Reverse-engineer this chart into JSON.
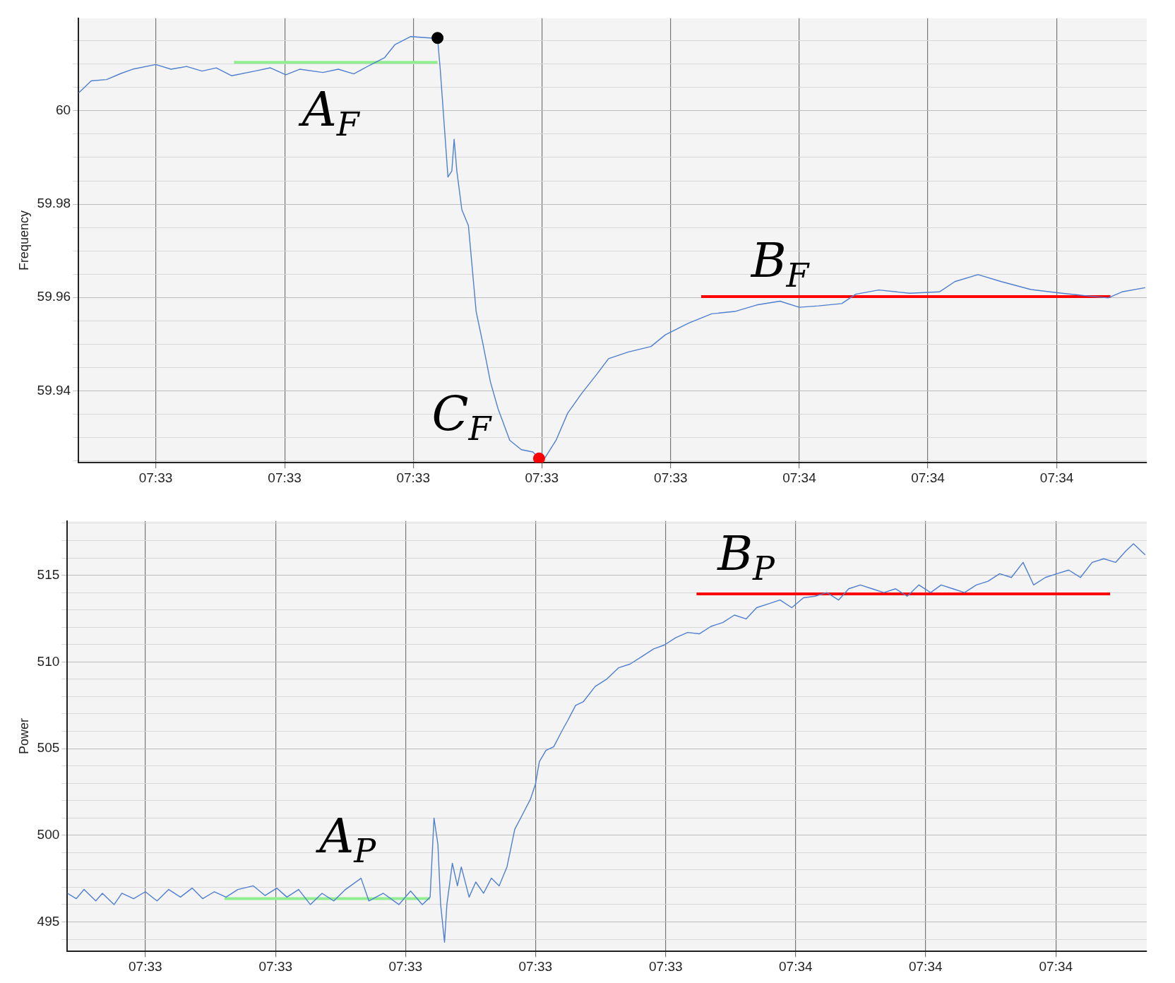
{
  "chart_data": [
    {
      "type": "line",
      "ylabel": "Frequency",
      "xlim": [
        7.54133,
        7.569
      ],
      "ylim": [
        59.9246,
        60.0198
      ],
      "xticks": [
        {
          "value": 7.54333,
          "label": "07:33"
        },
        {
          "value": 7.54667,
          "label": "07:33"
        },
        {
          "value": 7.55,
          "label": "07:33"
        },
        {
          "value": 7.55333,
          "label": "07:33"
        },
        {
          "value": 7.55667,
          "label": "07:33"
        },
        {
          "value": 7.56,
          "label": "07:34"
        },
        {
          "value": 7.56333,
          "label": "07:34"
        },
        {
          "value": 7.56667,
          "label": "07:34"
        }
      ],
      "yticks": [
        {
          "value": 59.925,
          "label": null
        },
        {
          "value": 59.93,
          "label": null
        },
        {
          "value": 59.935,
          "label": null
        },
        59.94,
        {
          "value": 59.945,
          "label": null
        },
        {
          "value": 59.95,
          "label": null
        },
        {
          "value": 59.955,
          "label": null
        },
        59.96,
        {
          "value": 59.965,
          "label": null
        },
        {
          "value": 59.97,
          "label": null
        },
        {
          "value": 59.975,
          "label": null
        },
        59.98,
        {
          "value": 59.985,
          "label": null
        },
        {
          "value": 59.99,
          "label": null
        },
        {
          "value": 59.995,
          "label": null
        },
        60,
        {
          "value": 60.005,
          "label": null
        },
        {
          "value": 60.01,
          "label": null
        },
        {
          "value": 60.015,
          "label": null
        }
      ],
      "grid": true,
      "legend": false,
      "series": [
        {
          "color": "#4f7fd0",
          "marker": "none",
          "x": [
            7.54133,
            7.54166,
            7.54206,
            7.54243,
            7.54273,
            7.54333,
            7.54373,
            7.54413,
            7.54453,
            7.5449,
            7.5453,
            7.5459,
            7.5463,
            7.5467,
            7.54706,
            7.54766,
            7.54806,
            7.54846,
            7.54886,
            7.54926,
            7.54953,
            7.54993,
            7.55043,
            7.55063,
            7.5507,
            7.55083,
            7.5509,
            7.551,
            7.55106,
            7.55113,
            7.55126,
            7.55143,
            7.55163,
            7.5518,
            7.552,
            7.5522,
            7.5525,
            7.5528,
            7.5531,
            7.55326,
            7.5534,
            7.5537,
            7.554,
            7.55436,
            7.55476,
            7.55506,
            7.55556,
            7.55616,
            7.55653,
            7.55713,
            7.55773,
            7.55833,
            7.5589,
            7.5595,
            7.56,
            7.5605,
            7.5611,
            7.56146,
            7.56206,
            7.56286,
            7.56363,
            7.56403,
            7.56463,
            7.56523,
            7.566,
            7.5668,
            7.5674,
            7.568,
            7.56836,
            7.56896
          ],
          "values": [
            60.0038,
            60.0064,
            60.0067,
            60.008,
            60.0089,
            60.0099,
            60.0089,
            60.0095,
            60.0085,
            60.0092,
            60.0075,
            60.0085,
            60.0092,
            60.0077,
            60.0089,
            60.0082,
            60.0089,
            60.0079,
            60.0097,
            60.0114,
            60.0142,
            60.0159,
            60.0156,
            60.0156,
            60.0089,
            59.9939,
            59.9858,
            59.9871,
            59.9939,
            59.9871,
            59.9788,
            59.9754,
            59.957,
            59.9503,
            59.9419,
            59.9361,
            59.9294,
            59.9274,
            59.9269,
            59.9255,
            59.9255,
            59.9294,
            59.9352,
            59.9394,
            59.9436,
            59.9469,
            59.9483,
            59.9495,
            59.952,
            59.9545,
            59.9565,
            59.957,
            59.9584,
            59.9592,
            59.9579,
            59.9582,
            59.9587,
            59.9607,
            59.9616,
            59.9609,
            59.9612,
            59.9634,
            59.9649,
            59.9634,
            59.9617,
            59.9609,
            59.9604,
            59.9599,
            59.9612,
            59.9621
          ]
        },
        {
          "color": "#90ee90",
          "marker": "none",
          "x": [
            7.54536,
            7.55063
          ],
          "values": [
            60.0104,
            60.0104
          ]
        },
        {
          "color": "#ff0000",
          "marker": "none",
          "x": [
            7.55746,
            7.56806
          ],
          "values": [
            59.9602,
            59.9602
          ]
        },
        {
          "type": "scatter",
          "color": "#000000",
          "marker": "circle",
          "x": [
            7.55063
          ],
          "values": [
            60.0156
          ]
        },
        {
          "type": "scatter",
          "color": "#ff0000",
          "marker": "circle",
          "x": [
            7.55326
          ],
          "values": [
            59.9255
          ]
        }
      ],
      "annotations": [
        {
          "text": "A$_{F}$",
          "x": 7.54786,
          "y": 60.0104
        },
        {
          "text": "B$_{F}$",
          "x": 7.5595,
          "y": 59.9602
        },
        {
          "text": "C$_{F}$",
          "x": 7.55326,
          "y": 59.9255
        }
      ]
    },
    {
      "type": "line",
      "ylabel": "Power",
      "xlim": [
        7.54133,
        7.569
      ],
      "ylim": [
        493.3,
        518.12
      ],
      "xticks": [
        {
          "value": 7.54333,
          "label": "07:33"
        },
        {
          "value": 7.54667,
          "label": "07:33"
        },
        {
          "value": 7.55,
          "label": "07:33"
        },
        {
          "value": 7.55333,
          "label": "07:33"
        },
        {
          "value": 7.55667,
          "label": "07:33"
        },
        {
          "value": 7.56,
          "label": "07:34"
        },
        {
          "value": 7.56333,
          "label": "07:34"
        },
        {
          "value": 7.56667,
          "label": "07:34"
        }
      ],
      "yticks": [
        {
          "value": 494,
          "label": null
        },
        495,
        {
          "value": 496,
          "label": null
        },
        {
          "value": 497,
          "label": null
        },
        {
          "value": 498,
          "label": null
        },
        {
          "value": 499,
          "label": null
        },
        500,
        {
          "value": 501,
          "label": null
        },
        {
          "value": 502,
          "label": null
        },
        {
          "value": 503,
          "label": null
        },
        {
          "value": 504,
          "label": null
        },
        505,
        {
          "value": 506,
          "label": null
        },
        {
          "value": 507,
          "label": null
        },
        {
          "value": 508,
          "label": null
        },
        {
          "value": 509,
          "label": null
        },
        510,
        {
          "value": 511,
          "label": null
        },
        {
          "value": 512,
          "label": null
        },
        {
          "value": 513,
          "label": null
        },
        {
          "value": 514,
          "label": null
        },
        515,
        {
          "value": 516,
          "label": null
        },
        {
          "value": 517,
          "label": null
        },
        {
          "value": 518,
          "label": null
        }
      ],
      "grid": true,
      "legend": false,
      "series": [
        {
          "color": "#4f7fd0",
          "marker": "none",
          "x": [
            7.54133,
            7.54156,
            7.54176,
            7.54206,
            7.54223,
            7.54253,
            7.54273,
            7.54303,
            7.54333,
            7.54363,
            7.54393,
            7.54423,
            7.54453,
            7.5448,
            7.5451,
            7.5454,
            7.5457,
            7.5461,
            7.5464,
            7.5467,
            7.54696,
            7.54726,
            7.54756,
            7.54786,
            7.54816,
            7.54846,
            7.54886,
            7.54906,
            7.54943,
            7.54983,
            7.55013,
            7.55043,
            7.55063,
            7.55073,
            7.55083,
            7.5509,
            7.551,
            7.55106,
            7.5512,
            7.55133,
            7.55143,
            7.55163,
            7.5518,
            7.552,
            7.5522,
            7.5524,
            7.5526,
            7.5528,
            7.553,
            7.5532,
            7.55333,
            7.55343,
            7.5536,
            7.5538,
            7.554,
            7.55416,
            7.55436,
            7.55456,
            7.55486,
            7.55516,
            7.55546,
            7.55576,
            7.55606,
            7.55636,
            7.55663,
            7.55693,
            7.55723,
            7.55753,
            7.55783,
            7.55813,
            7.55843,
            7.55873,
            7.559,
            7.5593,
            7.5596,
            7.5599,
            7.5602,
            7.5605,
            7.5608,
            7.5611,
            7.56136,
            7.56166,
            7.56196,
            7.56226,
            7.56256,
            7.56286,
            7.56316,
            7.56346,
            7.56373,
            7.56403,
            7.56433,
            7.56463,
            7.56493,
            7.56523,
            7.56553,
            7.56583,
            7.5661,
            7.5664,
            7.5667,
            7.567,
            7.5673,
            7.5676,
            7.5679,
            7.5682,
            7.56846,
            7.56866,
            7.56896
          ],
          "values": [
            496.65,
            496.34,
            496.87,
            496.21,
            496.65,
            496.0,
            496.65,
            496.34,
            496.74,
            496.21,
            496.87,
            496.43,
            496.95,
            496.34,
            496.74,
            496.43,
            496.87,
            497.08,
            496.52,
            496.95,
            496.43,
            496.87,
            496.0,
            496.65,
            496.21,
            496.87,
            497.52,
            496.21,
            496.65,
            496.0,
            496.78,
            496.0,
            496.43,
            500.99,
            499.47,
            496.0,
            493.83,
            496.0,
            498.38,
            497.08,
            498.17,
            496.43,
            497.3,
            496.65,
            497.52,
            497.08,
            498.17,
            500.34,
            501.2,
            502.07,
            502.94,
            504.24,
            504.89,
            505.11,
            505.98,
            506.63,
            507.49,
            507.71,
            508.58,
            509.01,
            509.66,
            509.88,
            510.31,
            510.75,
            510.97,
            511.4,
            511.7,
            511.62,
            512.05,
            512.27,
            512.7,
            512.48,
            513.13,
            513.35,
            513.57,
            513.13,
            513.7,
            513.79,
            514.0,
            513.57,
            514.22,
            514.44,
            514.22,
            514.0,
            514.22,
            513.79,
            514.44,
            514.0,
            514.44,
            514.22,
            514.0,
            514.44,
            514.65,
            515.09,
            514.87,
            515.74,
            514.44,
            514.87,
            515.09,
            515.3,
            514.87,
            515.74,
            515.95,
            515.74,
            516.39,
            516.82,
            516.17
          ]
        },
        {
          "color": "#90ee90",
          "marker": "none",
          "x": [
            7.54536,
            7.55063
          ],
          "values": [
            496.34,
            496.34
          ]
        },
        {
          "color": "#ff0000",
          "marker": "none",
          "x": [
            7.55746,
            7.56806
          ],
          "values": [
            513.92,
            513.92
          ]
        }
      ],
      "annotations": [
        {
          "text": "A$_{P}$",
          "x": 7.54826,
          "y": 496.34
        },
        {
          "text": "B$_{P}$",
          "x": 7.55873,
          "y": 513.92
        }
      ]
    }
  ]
}
